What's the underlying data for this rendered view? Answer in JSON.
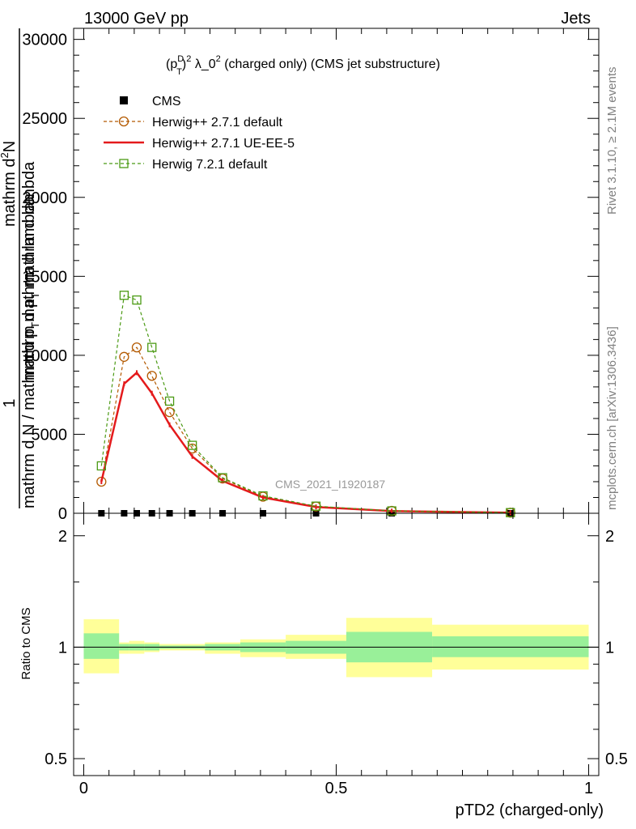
{
  "header": {
    "left": "13000 GeV pp",
    "right": "Jets"
  },
  "side_labels": {
    "rivet": "Rivet 3.1.10, ≥ 2.1M events",
    "mcplots": "mcplots.cern.ch [arXiv:1306.3436]"
  },
  "chart_data": [
    {
      "type": "line",
      "title_parts": {
        "base": "(p",
        "sup": "D",
        "sub": "T",
        "rest": ")",
        "sup2": "2",
        "mid": " λ_0",
        "sup3": "2",
        "tail": " (charged only) (CMS jet substructure)"
      },
      "watermark": "CMS_2021_I1920187",
      "ylabel": {
        "line1": "1",
        "line2": "mathrm d N / mathrm d p",
        "line2_sub": "T",
        "line2_tail": "mathrm d lambda",
        "line3": "mathrm d",
        "line3_sup": "2",
        "line3_tail": "N",
        "line4": "mathrm d p",
        "line4_sub": "T",
        "line4_tail": " mathrm d lambda"
      },
      "xlim": [
        -0.02,
        1.02
      ],
      "ylim": [
        0,
        30700
      ],
      "yticks": [
        0,
        5000,
        10000,
        15000,
        20000,
        25000,
        30000
      ],
      "ytick_labels": [
        "0",
        "5000",
        "10000",
        "15000",
        "20000",
        "25000",
        "30000"
      ],
      "grid": false,
      "legend_position": "top-left",
      "series": [
        {
          "name": "CMS",
          "style": "data",
          "color": "#000000",
          "x": [
            0.035,
            0.08,
            0.105,
            0.135,
            0.17,
            0.215,
            0.275,
            0.355,
            0.46,
            0.61,
            0.845
          ],
          "y": [
            0,
            0,
            0,
            0,
            0,
            0,
            0,
            0,
            0,
            0,
            0
          ]
        },
        {
          "name": "Herwig++ 2.7.1 default",
          "style": "circle-dashed",
          "color": "#b35900",
          "x": [
            0.035,
            0.08,
            0.105,
            0.135,
            0.17,
            0.215,
            0.275,
            0.355,
            0.46,
            0.61,
            0.845
          ],
          "y": [
            2000,
            9900,
            10500,
            8700,
            6400,
            4100,
            2200,
            1050,
            430,
            150,
            40
          ]
        },
        {
          "name": "Herwig++ 2.7.1 UE-EE-5",
          "style": "solid",
          "color": "#e41a1c",
          "x": [
            0.035,
            0.08,
            0.105,
            0.135,
            0.17,
            0.215,
            0.275,
            0.355,
            0.46,
            0.61,
            0.845
          ],
          "y": [
            2000,
            8200,
            8900,
            7600,
            5600,
            3600,
            2050,
            1000,
            400,
            140,
            35
          ]
        },
        {
          "name": "Herwig 7.2.1 default",
          "style": "square-dashed",
          "color": "#4b9a14",
          "x": [
            0.035,
            0.08,
            0.105,
            0.135,
            0.17,
            0.215,
            0.275,
            0.355,
            0.46,
            0.61,
            0.845
          ],
          "y": [
            3000,
            13800,
            13500,
            10500,
            7100,
            4300,
            2250,
            1100,
            450,
            150,
            40
          ]
        }
      ]
    },
    {
      "type": "area",
      "ylabel": "Ratio to CMS",
      "xlabel": "pTD2 (charged-only)",
      "xlim": [
        -0.02,
        1.02
      ],
      "ylim": [
        0.45,
        2.3
      ],
      "yticks": [
        0.5,
        1,
        2
      ],
      "ytick_labels": [
        "0.5",
        "1",
        "2"
      ],
      "xticks": [
        0,
        0.5,
        1
      ],
      "xtick_labels": [
        "0",
        "0.5",
        "1"
      ],
      "log_y": true,
      "reference_line": 1,
      "bands": {
        "edges": [
          0,
          0.07,
          0.09,
          0.12,
          0.15,
          0.19,
          0.24,
          0.31,
          0.4,
          0.52,
          0.69,
          1.0
        ],
        "outer_low": [
          0.85,
          0.96,
          0.96,
          0.97,
          0.98,
          0.98,
          0.96,
          0.94,
          0.93,
          0.83,
          0.87,
          0.87
        ],
        "outer_high": [
          1.19,
          1.03,
          1.04,
          1.03,
          1.02,
          1.02,
          1.03,
          1.05,
          1.08,
          1.2,
          1.15,
          1.15
        ],
        "inner_low": [
          0.93,
          0.98,
          0.98,
          0.98,
          0.99,
          0.99,
          0.98,
          0.97,
          0.96,
          0.91,
          0.94,
          0.94
        ],
        "inner_high": [
          1.09,
          1.02,
          1.02,
          1.02,
          1.01,
          1.01,
          1.02,
          1.03,
          1.04,
          1.1,
          1.07,
          1.07
        ],
        "inner_color": "#99f099",
        "outer_color": "#ffff99"
      }
    }
  ]
}
